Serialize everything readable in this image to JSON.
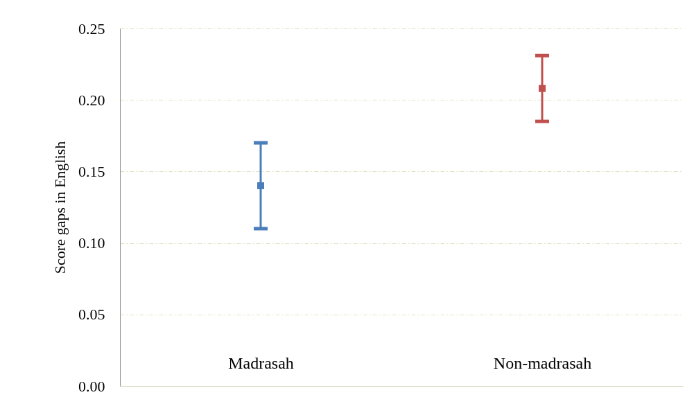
{
  "chart_data": {
    "type": "scatter",
    "ylabel": "Score gaps in English",
    "categories": [
      "Madrasah",
      "Non-madrasah"
    ],
    "series": [
      {
        "color": "#4a7ebb",
        "values": [
          0.14,
          null
        ],
        "errors": [
          [
            0.11,
            0.17
          ],
          null
        ]
      },
      {
        "color": "#c0504d",
        "values": [
          null,
          0.208
        ],
        "errors": [
          null,
          [
            0.185,
            0.231
          ]
        ]
      }
    ],
    "ylim": [
      0,
      0.25
    ],
    "yticks": [
      {
        "value": 0,
        "label": "0.00"
      },
      {
        "value": 0.05,
        "label": "0.05"
      },
      {
        "value": 0.1,
        "label": "0.10"
      },
      {
        "value": 0.15,
        "label": "0.15"
      },
      {
        "value": 0.2,
        "label": "0.20"
      },
      {
        "value": 0.25,
        "label": "0.25"
      }
    ],
    "grid": "y",
    "marker": "square"
  }
}
